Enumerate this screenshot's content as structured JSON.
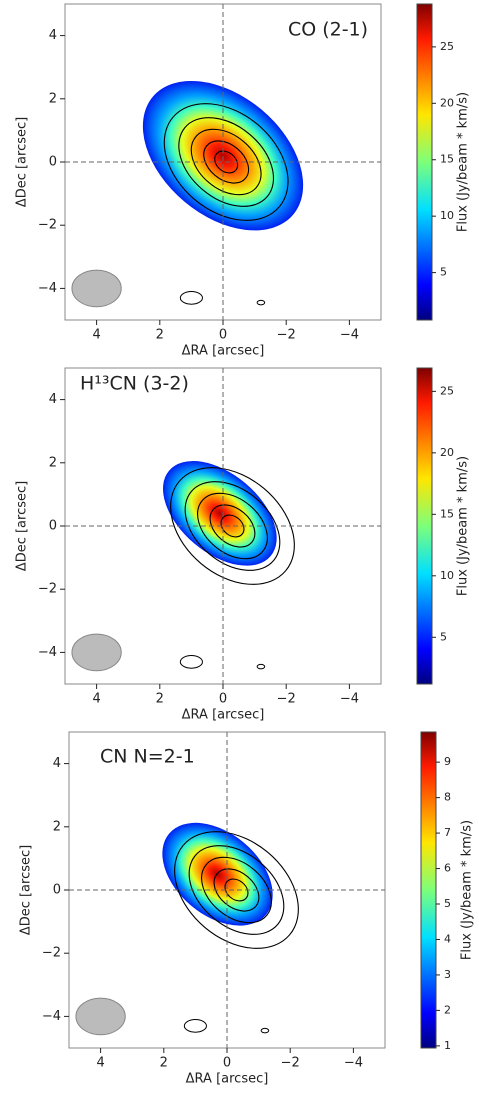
{
  "chart_data": [
    {
      "type": "image",
      "title": "CO (2-1)",
      "x_label": "ΔRA [arcsec]",
      "y_label": "ΔDec [arcsec]",
      "xlim": [
        5,
        -5
      ],
      "ylim": [
        -5,
        5
      ],
      "xticks": [
        {
          "value": 4,
          "label": "4"
        },
        {
          "value": 2,
          "label": "2"
        },
        {
          "value": 0,
          "label": "0"
        },
        {
          "value": -2,
          "label": "−2"
        },
        {
          "value": -4,
          "label": "−4"
        }
      ],
      "yticks": [
        {
          "value": -4,
          "label": "−4"
        },
        {
          "value": -2,
          "label": "−2"
        },
        {
          "value": 0,
          "label": "0"
        },
        {
          "value": 2,
          "label": "2"
        },
        {
          "value": 4,
          "label": "4"
        }
      ],
      "colormap": "jet",
      "colorbar_label": "Flux (Jy/beam * km/s)",
      "clim": [
        0.8,
        28.8
      ],
      "cticks": [
        5,
        10,
        15,
        20,
        25
      ]
    },
    {
      "type": "image",
      "title": "H¹³CN (3-2)",
      "x_label": "ΔRA [arcsec]",
      "y_label": "ΔDec [arcsec]",
      "xlim": [
        5,
        -5
      ],
      "ylim": [
        -5,
        5
      ],
      "xticks": [
        {
          "value": 4,
          "label": "4"
        },
        {
          "value": 2,
          "label": "2"
        },
        {
          "value": 0,
          "label": "0"
        },
        {
          "value": -2,
          "label": "−2"
        },
        {
          "value": -4,
          "label": "−4"
        }
      ],
      "yticks": [
        {
          "value": -4,
          "label": "−4"
        },
        {
          "value": -2,
          "label": "−2"
        },
        {
          "value": 0,
          "label": "0"
        },
        {
          "value": 2,
          "label": "2"
        },
        {
          "value": 4,
          "label": "4"
        }
      ],
      "colormap": "jet",
      "colorbar_label": "Flux (Jy/beam * km/s)",
      "clim": [
        1.2,
        26.9
      ],
      "cticks": [
        5,
        10,
        15,
        20,
        25
      ]
    },
    {
      "type": "image",
      "title": "CN N=2-1",
      "x_label": "ΔRA [arcsec]",
      "y_label": "ΔDec [arcsec]",
      "xlim": [
        5,
        -5
      ],
      "ylim": [
        -5,
        5
      ],
      "xticks": [
        {
          "value": 4,
          "label": "4"
        },
        {
          "value": 2,
          "label": "2"
        },
        {
          "value": 0,
          "label": "0"
        },
        {
          "value": -2,
          "label": "−2"
        },
        {
          "value": -4,
          "label": "−4"
        }
      ],
      "yticks": [
        {
          "value": -4,
          "label": "−4"
        },
        {
          "value": -2,
          "label": "−2"
        },
        {
          "value": 0,
          "label": "0"
        },
        {
          "value": 2,
          "label": "2"
        },
        {
          "value": 4,
          "label": "4"
        }
      ],
      "colormap": "jet",
      "colorbar_label": "Flux (Jy/beam * km/s)",
      "clim": [
        0.94,
        9.85
      ],
      "cticks": [
        1,
        2,
        3,
        4,
        5,
        6,
        7,
        8,
        9
      ]
    }
  ]
}
